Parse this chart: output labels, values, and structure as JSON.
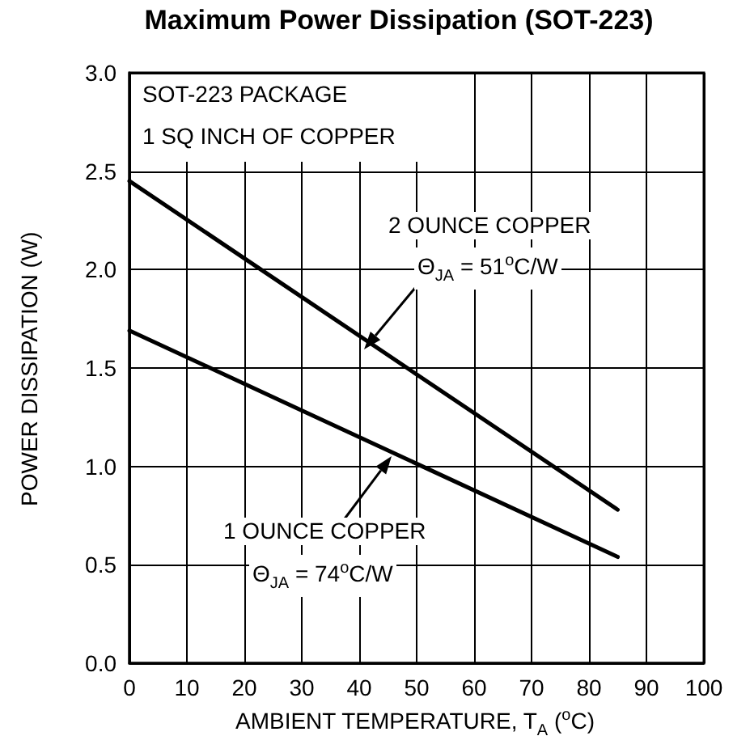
{
  "chart_data": {
    "type": "line",
    "title": "Maximum Power Dissipation (SOT-223)",
    "xlabel": "AMBIENT TEMPERATURE, T$_{A}$ ($^{o}$C)",
    "ylabel": "POWER DISSIPATION (W)",
    "annotations": [
      "SOT-223 PACKAGE",
      "1 SQ INCH OF COPPER",
      "2 OUNCE COPPER",
      "Θ$_{JA}$ = 51$^{o}$C/W",
      "1 OUNCE COPPER",
      "Θ$_{JA}$ = 74$^{o}$C/W"
    ],
    "x": [
      0,
      85
    ],
    "series": [
      {
        "color": "#000000",
        "values": [
          2.45,
          0.78
        ]
      },
      {
        "color": "#000000",
        "values": [
          1.69,
          0.54
        ]
      }
    ],
    "xlim": [
      0,
      100
    ],
    "xticks": [
      0,
      10,
      20,
      30,
      40,
      50,
      60,
      70,
      80,
      90,
      100
    ],
    "ylim": [
      0,
      3
    ],
    "yticks": [
      {
        "value": 0,
        "label": "0.0"
      },
      {
        "value": 0.5,
        "label": "0.5"
      },
      {
        "value": 1,
        "label": "1.0"
      },
      {
        "value": 1.5,
        "label": "1.5"
      },
      {
        "value": 2,
        "label": "2.0"
      },
      {
        "value": 2.5,
        "label": "2.5"
      },
      {
        "value": 3,
        "label": "3.0"
      }
    ],
    "grid": true,
    "marker": "none",
    "line_style": "solid"
  }
}
